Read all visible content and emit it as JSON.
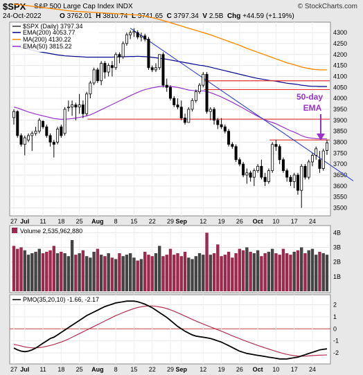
{
  "header": {
    "symbol": "$SPX",
    "name": "S&P 500 Large Cap Index",
    "exchange": "INDX",
    "copyright": "© StockCharts.com",
    "date": "24-Oct-2022",
    "o_label": "O",
    "o": "3762.01",
    "h_label": "H",
    "h": "3810.74",
    "l_label": "L",
    "l": "3741.65",
    "c_label": "C",
    "c": "3797.34",
    "v_label": "V",
    "v": "2.5B",
    "chg_label": "Chg",
    "chg": "+44.59 (+1.19%)"
  },
  "legend": {
    "price": "$SPX (Daily) 3797.34",
    "ema200": "EMA(200) 4053.77",
    "ma200": "MA(200) 4130.22",
    "ema50": "EMA(50) 3815.22",
    "volume": "Volume 2,535,962,880",
    "pmo": "PMO(35,20,10) -1.66, -2.17"
  },
  "annotation": {
    "line1": "50-day",
    "line2": "EMA"
  },
  "colors": {
    "up": "#000000",
    "down": "#000000",
    "ema200": "#00008b",
    "ma200": "#ff8c00",
    "ema50": "#9932cc",
    "trendline": "#3040d0",
    "hline": "#e03030",
    "vol_down": "#9c2a4e",
    "vol_up": "#444444",
    "pmo": "#000000",
    "pmo_signal": "#b03050",
    "annot": "#9932cc"
  },
  "chart_data": {
    "type": "candlestick",
    "price_axis": {
      "ticks": [
        3500,
        3550,
        3600,
        3650,
        3700,
        3750,
        3800,
        3850,
        3900,
        3950,
        4000,
        4050,
        4100,
        4150,
        4200,
        4250,
        4300
      ],
      "ylim": [
        3470,
        4335
      ]
    },
    "volume_axis": {
      "ticks": [
        "1B",
        "2B",
        "3B",
        "4B"
      ],
      "tick_values": [
        1,
        2,
        3,
        4
      ],
      "ylim": [
        0,
        4.3
      ]
    },
    "pmo_axis": {
      "ticks": [
        "-2",
        "-1",
        "0",
        "1",
        "2"
      ],
      "tick_values": [
        -2,
        -1,
        0,
        1,
        2
      ],
      "ylim": [
        -2.8,
        2.6
      ]
    },
    "x_ticks": [
      {
        "label": "27",
        "idx": 0,
        "bold": false
      },
      {
        "label": "Jul",
        "idx": 3,
        "bold": true
      },
      {
        "label": "11",
        "idx": 8,
        "bold": false
      },
      {
        "label": "18",
        "idx": 13,
        "bold": false
      },
      {
        "label": "25",
        "idx": 18,
        "bold": false
      },
      {
        "label": "Aug",
        "idx": 23,
        "bold": true
      },
      {
        "label": "8",
        "idx": 28,
        "bold": false
      },
      {
        "label": "15",
        "idx": 33,
        "bold": false
      },
      {
        "label": "22",
        "idx": 38,
        "bold": false
      },
      {
        "label": "29",
        "idx": 43,
        "bold": false
      },
      {
        "label": "Sep",
        "idx": 46,
        "bold": true
      },
      {
        "label": "12",
        "idx": 52,
        "bold": false
      },
      {
        "label": "19",
        "idx": 57,
        "bold": false
      },
      {
        "label": "26",
        "idx": 62,
        "bold": false
      },
      {
        "label": "Oct",
        "idx": 67,
        "bold": true
      },
      {
        "label": "10",
        "idx": 72,
        "bold": false
      },
      {
        "label": "17",
        "idx": 77,
        "bold": false
      },
      {
        "label": "24",
        "idx": 82,
        "bold": false
      }
    ],
    "ohlc": [
      [
        3912,
        3950,
        3880,
        3940
      ],
      [
        3940,
        3945,
        3820,
        3830
      ],
      [
        3830,
        3840,
        3780,
        3790
      ],
      [
        3790,
        3830,
        3740,
        3820
      ],
      [
        3810,
        3840,
        3800,
        3830
      ],
      [
        3830,
        3850,
        3760,
        3840
      ],
      [
        3840,
        3870,
        3830,
        3850
      ],
      [
        3850,
        3910,
        3840,
        3900
      ],
      [
        3895,
        3900,
        3860,
        3870
      ],
      [
        3870,
        3880,
        3820,
        3830
      ],
      [
        3830,
        3840,
        3780,
        3800
      ],
      [
        3800,
        3810,
        3730,
        3790
      ],
      [
        3800,
        3870,
        3790,
        3860
      ],
      [
        3870,
        3880,
        3820,
        3830
      ],
      [
        3840,
        3960,
        3830,
        3950
      ],
      [
        3960,
        3990,
        3940,
        3960
      ],
      [
        3960,
        3990,
        3920,
        3970
      ],
      [
        3970,
        3980,
        3900,
        3960
      ],
      [
        3960,
        4020,
        3930,
        3970
      ],
      [
        3970,
        3990,
        3910,
        3930
      ],
      [
        3930,
        4030,
        3920,
        4020
      ],
      [
        4020,
        4080,
        4000,
        4070
      ],
      [
        4070,
        4140,
        4060,
        4130
      ],
      [
        4130,
        4140,
        4070,
        4080
      ],
      [
        4080,
        4170,
        4060,
        4160
      ],
      [
        4160,
        4170,
        4090,
        4120
      ],
      [
        4120,
        4160,
        4100,
        4150
      ],
      [
        4150,
        4170,
        4100,
        4140
      ],
      [
        4140,
        4210,
        4130,
        4200
      ],
      [
        4200,
        4210,
        4160,
        4190
      ],
      [
        4190,
        4260,
        4180,
        4250
      ],
      [
        4250,
        4300,
        4240,
        4290
      ],
      [
        4290,
        4310,
        4270,
        4300
      ],
      [
        4300,
        4320,
        4280,
        4305
      ],
      [
        4300,
        4310,
        4270,
        4280
      ],
      [
        4280,
        4300,
        4260,
        4285
      ],
      [
        4285,
        4295,
        4260,
        4270
      ],
      [
        4270,
        4280,
        4130,
        4140
      ],
      [
        4140,
        4150,
        4120,
        4130
      ],
      [
        4130,
        4160,
        4120,
        4140
      ],
      [
        4140,
        4200,
        4130,
        4200
      ],
      [
        4200,
        4210,
        4050,
        4060
      ],
      [
        4060,
        4090,
        4030,
        4050
      ],
      [
        4050,
        4060,
        3990,
        4000
      ],
      [
        4000,
        4010,
        3960,
        3970
      ],
      [
        3970,
        4000,
        3950,
        3960
      ],
      [
        3960,
        3990,
        3900,
        3910
      ],
      [
        3910,
        3930,
        3880,
        3890
      ],
      [
        3890,
        3960,
        3890,
        3950
      ],
      [
        3950,
        4000,
        3940,
        3990
      ],
      [
        3990,
        4040,
        3980,
        4030
      ],
      [
        4030,
        4070,
        4020,
        4060
      ],
      [
        4060,
        4120,
        4050,
        4110
      ],
      [
        4110,
        4120,
        3930,
        3940
      ],
      [
        3940,
        3960,
        3900,
        3950
      ],
      [
        3950,
        3960,
        3880,
        3900
      ],
      [
        3900,
        3910,
        3860,
        3880
      ],
      [
        3880,
        3910,
        3860,
        3870
      ],
      [
        3870,
        3880,
        3840,
        3850
      ],
      [
        3850,
        3860,
        3780,
        3790
      ],
      [
        3790,
        3800,
        3770,
        3780
      ],
      [
        3780,
        3790,
        3710,
        3720
      ],
      [
        3720,
        3730,
        3690,
        3700
      ],
      [
        3700,
        3710,
        3640,
        3650
      ],
      [
        3650,
        3680,
        3610,
        3660
      ],
      [
        3660,
        3670,
        3620,
        3640
      ],
      [
        3640,
        3680,
        3600,
        3670
      ],
      [
        3670,
        3700,
        3660,
        3690
      ],
      [
        3690,
        3720,
        3630,
        3640
      ],
      [
        3640,
        3660,
        3600,
        3620
      ],
      [
        3620,
        3680,
        3610,
        3670
      ],
      [
        3670,
        3800,
        3660,
        3790
      ],
      [
        3790,
        3810,
        3760,
        3780
      ],
      [
        3780,
        3790,
        3700,
        3720
      ],
      [
        3720,
        3730,
        3660,
        3670
      ],
      [
        3670,
        3680,
        3620,
        3640
      ],
      [
        3640,
        3650,
        3600,
        3620
      ],
      [
        3620,
        3660,
        3590,
        3650
      ],
      [
        3650,
        3660,
        3560,
        3580
      ],
      [
        3580,
        3700,
        3500,
        3690
      ],
      [
        3690,
        3700,
        3630,
        3640
      ],
      [
        3640,
        3720,
        3630,
        3710
      ],
      [
        3710,
        3750,
        3690,
        3740
      ],
      [
        3740,
        3780,
        3720,
        3770
      ],
      [
        3720,
        3760,
        3660,
        3680
      ],
      [
        3680,
        3770,
        3670,
        3760
      ],
      [
        3762,
        3811,
        3742,
        3797
      ]
    ],
    "volume": [
      3.1,
      2.9,
      3.0,
      2.8,
      2.5,
      2.6,
      2.7,
      2.9,
      2.6,
      2.7,
      2.8,
      3.1,
      2.6,
      2.7,
      2.6,
      2.4,
      3.5,
      2.5,
      2.6,
      2.8,
      2.4,
      2.3,
      2.7,
      2.9,
      2.5,
      2.4,
      2.6,
      2.3,
      2.2,
      2.6,
      2.4,
      2.5,
      2.6,
      2.3,
      2.1,
      2.2,
      2.7,
      2.5,
      2.4,
      2.6,
      3.1,
      2.4,
      2.5,
      2.9,
      2.5,
      2.6,
      2.4,
      2.7,
      2.3,
      2.2,
      2.4,
      2.6,
      2.5,
      4.0,
      2.5,
      2.6,
      3.2,
      2.4,
      2.5,
      2.7,
      2.3,
      2.6,
      2.9,
      2.8,
      3.0,
      2.7,
      2.6,
      2.8,
      2.4,
      2.6,
      2.7,
      2.9,
      2.6,
      2.5,
      2.9,
      2.6,
      2.5,
      2.7,
      2.8,
      3.0,
      2.6,
      2.8,
      2.9,
      2.5,
      2.7,
      2.6,
      2.5
    ],
    "volume_up": [
      0,
      0,
      0,
      1,
      1,
      1,
      1,
      1,
      0,
      0,
      0,
      0,
      1,
      0,
      1,
      1,
      1,
      0,
      1,
      0,
      1,
      1,
      1,
      0,
      1,
      0,
      1,
      0,
      1,
      0,
      1,
      1,
      1,
      1,
      0,
      1,
      0,
      0,
      0,
      1,
      1,
      0,
      0,
      0,
      0,
      0,
      0,
      0,
      1,
      1,
      1,
      1,
      1,
      0,
      1,
      0,
      0,
      0,
      0,
      0,
      0,
      0,
      0,
      0,
      1,
      0,
      1,
      1,
      0,
      0,
      1,
      1,
      0,
      0,
      0,
      0,
      0,
      1,
      0,
      1,
      0,
      1,
      1,
      1,
      0,
      1,
      1
    ],
    "ema200": [
      4240,
      4236,
      4232,
      4228,
      4224,
      4220,
      4216,
      4213,
      4210,
      4207,
      4204,
      4201,
      4198,
      4196,
      4194,
      4193,
      4192,
      4191,
      4190,
      4189,
      4188,
      4188,
      4188,
      4188,
      4188,
      4188,
      4188,
      4188,
      4189,
      4189,
      4190,
      4190,
      4191,
      4191,
      4192,
      4191,
      4190,
      4189,
      4187,
      4185,
      4183,
      4181,
      4178,
      4175,
      4172,
      4169,
      4166,
      4163,
      4160,
      4157,
      4154,
      4151,
      4149,
      4146,
      4142,
      4138,
      4134,
      4130,
      4126,
      4122,
      4118,
      4114,
      4110,
      4106,
      4102,
      4098,
      4094,
      4091,
      4088,
      4085,
      4082,
      4080,
      4078,
      4075,
      4072,
      4069,
      4067,
      4065,
      4063,
      4060,
      4058,
      4056,
      4055,
      4055,
      4054,
      4054,
      4054
    ],
    "ma200": [
      4430,
      4428,
      4426,
      4424,
      4422,
      4420,
      4418,
      4416,
      4414,
      4412,
      4410,
      4408,
      4406,
      4404,
      4402,
      4400,
      4398,
      4397,
      4396,
      4395,
      4394,
      4393,
      4392,
      4391,
      4390,
      4389,
      4388,
      4387,
      4386,
      4385,
      4384,
      4383,
      4382,
      4381,
      4380,
      4378,
      4375,
      4372,
      4368,
      4364,
      4360,
      4355,
      4350,
      4345,
      4340,
      4335,
      4330,
      4325,
      4320,
      4315,
      4310,
      4305,
      4300,
      4295,
      4290,
      4284,
      4278,
      4272,
      4266,
      4260,
      4254,
      4248,
      4242,
      4235,
      4228,
      4222,
      4216,
      4210,
      4204,
      4198,
      4192,
      4186,
      4180,
      4174,
      4168,
      4162,
      4158,
      4153,
      4148,
      4143,
      4139,
      4136,
      4133,
      4131,
      4130,
      4130,
      4130
    ],
    "ema50": [
      3960,
      3956,
      3950,
      3944,
      3938,
      3933,
      3928,
      3924,
      3920,
      3916,
      3912,
      3908,
      3906,
      3904,
      3905,
      3906,
      3908,
      3910,
      3913,
      3916,
      3920,
      3925,
      3932,
      3940,
      3948,
      3956,
      3964,
      3972,
      3980,
      3988,
      3996,
      4004,
      4012,
      4020,
      4027,
      4034,
      4040,
      4044,
      4048,
      4051,
      4054,
      4055,
      4055,
      4054,
      4052,
      4050,
      4046,
      4042,
      4038,
      4036,
      4035,
      4034,
      4034,
      4032,
      4026,
      4020,
      4013,
      4006,
      3998,
      3990,
      3982,
      3973,
      3964,
      3955,
      3945,
      3936,
      3927,
      3918,
      3910,
      3902,
      3895,
      3890,
      3884,
      3876,
      3868,
      3860,
      3852,
      3846,
      3838,
      3830,
      3824,
      3820,
      3818,
      3816,
      3815,
      3815,
      3815
    ],
    "pmo": [
      -1.6,
      -1.75,
      -1.85,
      -1.9,
      -1.85,
      -1.75,
      -1.6,
      -1.4,
      -1.2,
      -1.0,
      -0.8,
      -0.7,
      -0.5,
      -0.3,
      -0.1,
      0.1,
      0.3,
      0.5,
      0.7,
      0.9,
      1.1,
      1.25,
      1.4,
      1.55,
      1.7,
      1.85,
      1.95,
      2.05,
      2.15,
      2.2,
      2.25,
      2.3,
      2.3,
      2.3,
      2.25,
      2.15,
      2.05,
      1.9,
      1.75,
      1.55,
      1.35,
      1.15,
      0.95,
      0.7,
      0.45,
      0.2,
      0.0,
      -0.2,
      -0.35,
      -0.5,
      -0.6,
      -0.65,
      -0.7,
      -0.75,
      -0.8,
      -0.9,
      -1.0,
      -1.1,
      -1.25,
      -1.4,
      -1.55,
      -1.7,
      -1.85,
      -1.95,
      -2.05,
      -2.1,
      -2.15,
      -2.2,
      -2.25,
      -2.3,
      -2.35,
      -2.4,
      -2.45,
      -2.5,
      -2.5,
      -2.5,
      -2.45,
      -2.4,
      -2.35,
      -2.25,
      -2.15,
      -2.05,
      -1.95,
      -1.85,
      -1.75,
      -1.7,
      -1.66
    ],
    "pmo_signal": [
      -1.3,
      -1.35,
      -1.42,
      -1.5,
      -1.55,
      -1.58,
      -1.58,
      -1.56,
      -1.52,
      -1.45,
      -1.38,
      -1.3,
      -1.2,
      -1.1,
      -0.98,
      -0.85,
      -0.7,
      -0.55,
      -0.4,
      -0.25,
      -0.1,
      0.05,
      0.2,
      0.35,
      0.5,
      0.65,
      0.8,
      0.95,
      1.1,
      1.22,
      1.35,
      1.47,
      1.58,
      1.68,
      1.77,
      1.83,
      1.88,
      1.9,
      1.9,
      1.87,
      1.82,
      1.76,
      1.68,
      1.58,
      1.46,
      1.33,
      1.2,
      1.06,
      0.92,
      0.78,
      0.65,
      0.52,
      0.4,
      0.28,
      0.16,
      0.04,
      -0.08,
      -0.2,
      -0.32,
      -0.45,
      -0.58,
      -0.7,
      -0.82,
      -0.94,
      -1.05,
      -1.16,
      -1.27,
      -1.38,
      -1.48,
      -1.58,
      -1.68,
      -1.78,
      -1.87,
      -1.96,
      -2.05,
      -2.12,
      -2.18,
      -2.23,
      -2.26,
      -2.28,
      -2.27,
      -2.25,
      -2.22,
      -2.2,
      -2.19,
      -2.18,
      -2.17
    ],
    "hlines": [
      {
        "price": 3905,
        "from_idx": 21,
        "to_idx": 86
      },
      {
        "price": 4080,
        "from_idx": 53,
        "to_idx": 86
      },
      {
        "price": 4040,
        "from_idx": 53,
        "to_idx": 86
      },
      {
        "price": 3810,
        "from_idx": 71,
        "to_idx": 86
      }
    ],
    "trendline": {
      "start": [
        32,
        4320
      ],
      "end": [
        86,
        3718
      ]
    }
  }
}
